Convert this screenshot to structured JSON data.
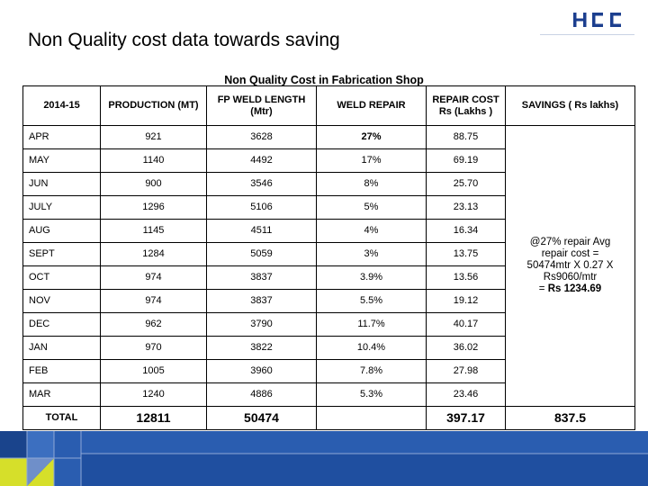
{
  "header": {
    "title": "Non Quality cost data towards saving",
    "logo_text": "HCC"
  },
  "table": {
    "title": "Non Quality Cost in Fabrication Shop",
    "columns": [
      "2014-15",
      "PRODUCTION (MT)",
      "FP WELD LENGTH (Mtr)",
      "WELD REPAIR",
      "REPAIR COST Rs (Lakhs )",
      "SAVINGS ( Rs lakhs)"
    ],
    "rows": [
      {
        "month": "APR",
        "production": "921",
        "weld_length": "3628",
        "weld_repair": "27%",
        "repair_cost": "88.75"
      },
      {
        "month": "MAY",
        "production": "1140",
        "weld_length": "4492",
        "weld_repair": "17%",
        "repair_cost": "69.19"
      },
      {
        "month": "JUN",
        "production": "900",
        "weld_length": "3546",
        "weld_repair": "8%",
        "repair_cost": "25.70"
      },
      {
        "month": "JULY",
        "production": "1296",
        "weld_length": "5106",
        "weld_repair": "5%",
        "repair_cost": "23.13"
      },
      {
        "month": "AUG",
        "production": "1145",
        "weld_length": "4511",
        "weld_repair": "4%",
        "repair_cost": "16.34"
      },
      {
        "month": "SEPT",
        "production": "1284",
        "weld_length": "5059",
        "weld_repair": "3%",
        "repair_cost": "13.75"
      },
      {
        "month": "OCT",
        "production": "974",
        "weld_length": "3837",
        "weld_repair": "3.9%",
        "repair_cost": "13.56"
      },
      {
        "month": "NOV",
        "production": "974",
        "weld_length": "3837",
        "weld_repair": "5.5%",
        "repair_cost": "19.12"
      },
      {
        "month": "DEC",
        "production": "962",
        "weld_length": "3790",
        "weld_repair": "11.7%",
        "repair_cost": "40.17"
      },
      {
        "month": "JAN",
        "production": "970",
        "weld_length": "3822",
        "weld_repair": "10.4%",
        "repair_cost": "36.02"
      },
      {
        "month": "FEB",
        "production": "1005",
        "weld_length": "3960",
        "weld_repair": "7.8%",
        "repair_cost": "27.98"
      },
      {
        "month": "MAR",
        "production": "1240",
        "weld_length": "4886",
        "weld_repair": "5.3%",
        "repair_cost": "23.46"
      }
    ],
    "savings_note": {
      "line1": "@27% repair Avg",
      "line2": "repair cost =",
      "line3": "50474mtr X 0.27 X",
      "line4": "Rs9060/mtr",
      "line5_prefix": "= ",
      "line5_value": "Rs 1234.69"
    },
    "total": {
      "label": "TOTAL",
      "production": "12811",
      "weld_length": "50474",
      "weld_repair": "",
      "repair_cost": "397.17",
      "savings": "837.5"
    }
  },
  "colors": {
    "logo_blue": "#1c3f8f",
    "band_blue": "#1f4fa0",
    "band_yellow": "#d6df2a"
  }
}
